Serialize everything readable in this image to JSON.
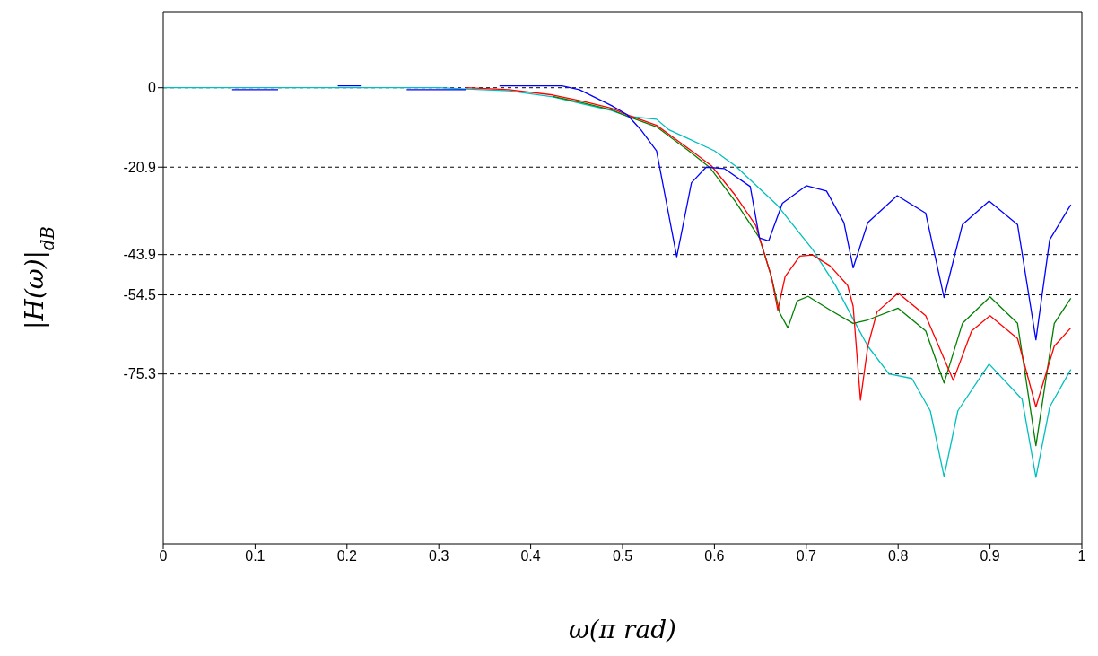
{
  "chart_data": {
    "type": "line",
    "xlabel": "ω(π rad)",
    "ylabel": "|H(ω)|$_{dB}$",
    "xlim": [
      0,
      1
    ],
    "xticks": [
      0,
      0.1,
      0.2,
      0.3,
      0.4,
      0.5,
      0.6,
      0.7,
      0.8,
      0.9,
      1
    ],
    "ylim": [
      -120,
      20
    ],
    "yticks": [
      0,
      -20.9,
      -43.9,
      -54.5,
      -75.3
    ],
    "grid": "y",
    "marker": "none",
    "line_style": "solid",
    "series": [
      {
        "color": "#00bfbf",
        "x": [
          0,
          0.3,
          0.376,
          0.424,
          0.457,
          0.488,
          0.505,
          0.537,
          0.55,
          0.6,
          0.623,
          0.668,
          0.707,
          0.732,
          0.751,
          0.767,
          0.79,
          0.815,
          0.835,
          0.85,
          0.865,
          0.899,
          0.935,
          0.95,
          0.965,
          0.988
        ],
        "values": [
          0,
          0,
          -0.8,
          -2.4,
          -4.3,
          -6,
          -7.5,
          -8.3,
          -11,
          -16.6,
          -20.6,
          -30.8,
          -42.6,
          -52.1,
          -60.9,
          -68,
          -75.3,
          -76.5,
          -85,
          -102.3,
          -85,
          -72.7,
          -82,
          -102.5,
          -84,
          -74.1
        ]
      },
      {
        "color": "#008000",
        "x": [
          0.424,
          0.457,
          0.488,
          0.505,
          0.537,
          0.572,
          0.595,
          0.623,
          0.649,
          0.662,
          0.671,
          0.68,
          0.69,
          0.702,
          0.726,
          0.751,
          0.767,
          0.8,
          0.83,
          0.85,
          0.87,
          0.9,
          0.93,
          0.95,
          0.97,
          0.988
        ],
        "values": [
          -2.3,
          -4,
          -5.8,
          -7.5,
          -10.3,
          -16.6,
          -21,
          -30,
          -39.5,
          -49.7,
          -59.2,
          -63.2,
          -56.1,
          -54.9,
          -58.5,
          -62,
          -61.1,
          -58,
          -64,
          -77.7,
          -62,
          -55,
          -62,
          -94.2,
          -62,
          -55.4
        ]
      },
      {
        "color": "#ff0000",
        "x": [
          0.33,
          0.376,
          0.424,
          0.457,
          0.488,
          0.505,
          0.537,
          0.575,
          0.597,
          0.623,
          0.645,
          0.662,
          0.669,
          0.677,
          0.693,
          0.707,
          0.726,
          0.745,
          0.751,
          0.759,
          0.767,
          0.777,
          0.8,
          0.83,
          0.86,
          0.88,
          0.9,
          0.93,
          0.95,
          0.97,
          0.988
        ],
        "values": [
          0,
          -0.5,
          -1.9,
          -3.6,
          -5.4,
          -7.1,
          -9.9,
          -16.6,
          -20.6,
          -28.4,
          -36.2,
          -49.7,
          -58.5,
          -49.7,
          -44.3,
          -44,
          -46.9,
          -52,
          -57.5,
          -82.2,
          -68,
          -59,
          -54,
          -60,
          -77,
          -64,
          -60,
          -66,
          -84,
          -68,
          -63.2
        ]
      },
      {
        "color": "#0000ff",
        "x": [
          0.075,
          0.125,
          0.16,
          0.19,
          0.215,
          0.24,
          0.265,
          0.33,
          0.35,
          0.366,
          0.434,
          0.453,
          0.488,
          0.505,
          0.52,
          0.537,
          0.559,
          0.575,
          0.591,
          0.611,
          0.639,
          0.649,
          0.659,
          0.674,
          0.7,
          0.722,
          0.741,
          0.751,
          0.767,
          0.799,
          0.83,
          0.85,
          0.87,
          0.899,
          0.93,
          0.95,
          0.965,
          0.988
        ],
        "values": [
          -0.5,
          -0.5,
          null,
          0.5,
          0.5,
          null,
          -0.5,
          -0.5,
          null,
          0.5,
          0.5,
          -0.5,
          -4.7,
          -7.1,
          -11.1,
          -16.6,
          -44.5,
          -25,
          -20.9,
          -21.3,
          -26,
          -39.5,
          -40.3,
          -30.4,
          -25.8,
          -27.2,
          -35.5,
          -47.4,
          -35.5,
          -28.4,
          -33,
          -55.2,
          -36,
          -29.8,
          -36,
          -66.3,
          -40,
          -30.8
        ]
      }
    ]
  }
}
